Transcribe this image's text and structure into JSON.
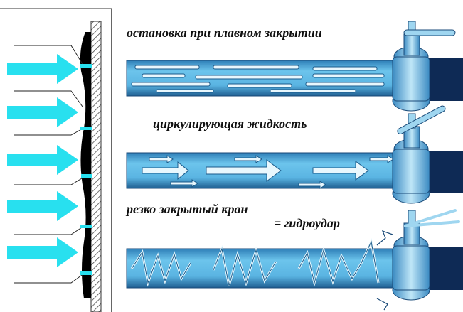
{
  "captions": {
    "slow_closing": "остановка при плавном закрытии",
    "circulating": "циркулирующая жидкость",
    "sharp_closing": "резко закрытый кран",
    "result": "= гидроудар"
  }
}
